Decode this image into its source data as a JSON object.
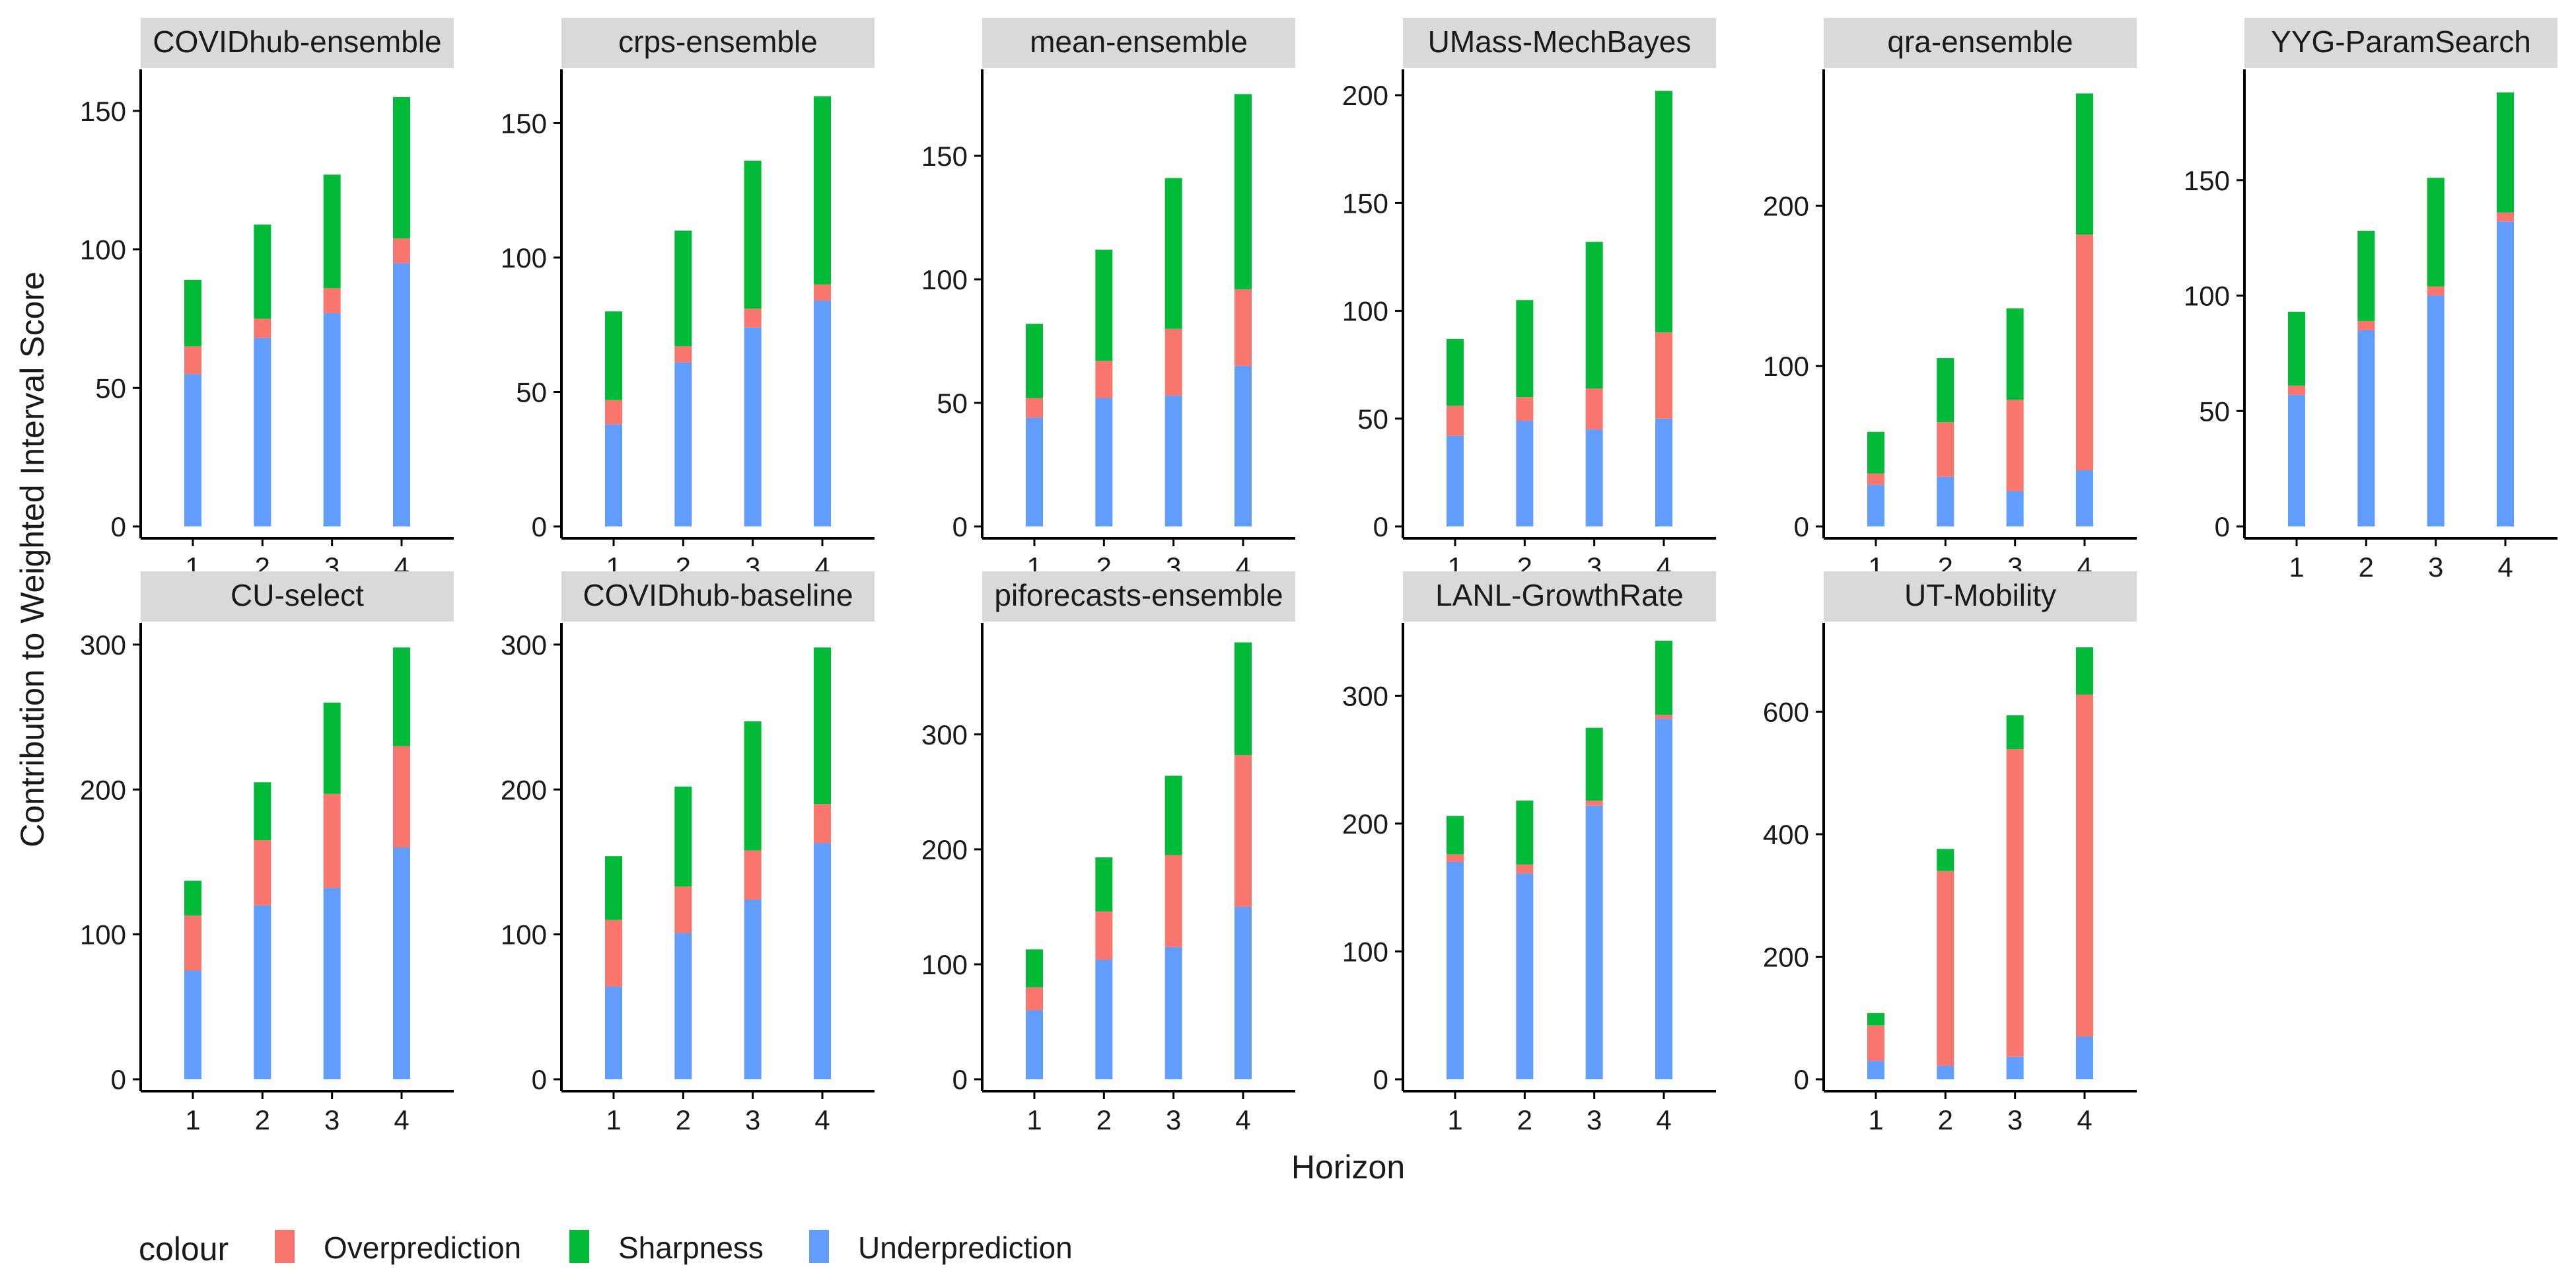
{
  "chart_data": {
    "type": "bar",
    "stacked": true,
    "layout": "facet-grid",
    "xlabel": "Horizon",
    "ylabel": "Contribution to Weighted Interval Score",
    "legend": {
      "title": "colour",
      "position": "bottom-left",
      "entries": [
        {
          "name": "Overprediction",
          "color": "#F8766D"
        },
        {
          "name": "Sharpness",
          "color": "#00BA38"
        },
        {
          "name": "Underprediction",
          "color": "#619CFF"
        }
      ]
    },
    "categories": [
      "1",
      "2",
      "3",
      "4"
    ],
    "facets": [
      {
        "title": "COVIDhub-ensemble",
        "ylim": [
          0,
          165
        ],
        "yticks": [
          "0",
          "50",
          "100",
          "150"
        ],
        "series": [
          {
            "name": "Underprediction",
            "values": [
              55,
              68,
              77,
              95
            ]
          },
          {
            "name": "Overprediction",
            "values": [
              10,
              7,
              9,
              9
            ]
          },
          {
            "name": "Sharpness",
            "values": [
              24,
              34,
              41,
              51
            ]
          }
        ]
      },
      {
        "title": "crps-ensemble",
        "ylim": [
          0,
          170
        ],
        "yticks": [
          "0",
          "50",
          "100",
          "150"
        ],
        "series": [
          {
            "name": "Underprediction",
            "values": [
              38,
              61,
              74,
              84
            ]
          },
          {
            "name": "Overprediction",
            "values": [
              9,
              6,
              7,
              6
            ]
          },
          {
            "name": "Sharpness",
            "values": [
              33,
              43,
              55,
              70
            ]
          }
        ]
      },
      {
        "title": "mean-ensemble",
        "ylim": [
          0,
          185
        ],
        "yticks": [
          "0",
          "50",
          "100",
          "150"
        ],
        "series": [
          {
            "name": "Underprediction",
            "values": [
              44,
              52,
              53,
              65
            ]
          },
          {
            "name": "Overprediction",
            "values": [
              8,
              15,
              27,
              31
            ]
          },
          {
            "name": "Sharpness",
            "values": [
              30,
              45,
              61,
              79
            ]
          }
        ]
      },
      {
        "title": "UMass-MechBayes",
        "ylim": [
          0,
          212
        ],
        "yticks": [
          "0",
          "50",
          "100",
          "150",
          "200"
        ],
        "series": [
          {
            "name": "Underprediction",
            "values": [
              42,
              49,
              45,
              50
            ]
          },
          {
            "name": "Overprediction",
            "values": [
              14,
              11,
              19,
              40
            ]
          },
          {
            "name": "Sharpness",
            "values": [
              31,
              45,
              68,
              112
            ]
          }
        ]
      },
      {
        "title": "qra-ensemble",
        "ylim": [
          0,
          285
        ],
        "yticks": [
          "0",
          "100",
          "200"
        ],
        "series": [
          {
            "name": "Underprediction",
            "values": [
              26,
              31,
              22,
              35
            ]
          },
          {
            "name": "Overprediction",
            "values": [
              7,
              34,
              57,
              147
            ]
          },
          {
            "name": "Sharpness",
            "values": [
              26,
              40,
              57,
              88
            ]
          }
        ]
      },
      {
        "title": "YYG-ParamSearch",
        "ylim": [
          0,
          198
        ],
        "yticks": [
          "0",
          "50",
          "100",
          "150"
        ],
        "series": [
          {
            "name": "Underprediction",
            "values": [
              57,
              85,
              100,
              132
            ]
          },
          {
            "name": "Overprediction",
            "values": [
              4,
              4,
              4,
              4
            ]
          },
          {
            "name": "Sharpness",
            "values": [
              32,
              39,
              47,
              52
            ]
          }
        ]
      },
      {
        "title": "CU-select",
        "ylim": [
          0,
          315
        ],
        "yticks": [
          "0",
          "100",
          "200",
          "300"
        ],
        "series": [
          {
            "name": "Underprediction",
            "values": [
              75,
              120,
              132,
              160
            ]
          },
          {
            "name": "Overprediction",
            "values": [
              38,
              45,
              65,
              70
            ]
          },
          {
            "name": "Sharpness",
            "values": [
              24,
              40,
              63,
              68
            ]
          }
        ]
      },
      {
        "title": "COVIDhub-baseline",
        "ylim": [
          0,
          315
        ],
        "yticks": [
          "0",
          "100",
          "200",
          "300"
        ],
        "series": [
          {
            "name": "Underprediction",
            "values": [
              64,
              101,
              124,
              163
            ]
          },
          {
            "name": "Overprediction",
            "values": [
              46,
              32,
              34,
              27
            ]
          },
          {
            "name": "Sharpness",
            "values": [
              44,
              69,
              89,
              108
            ]
          }
        ]
      },
      {
        "title": "piforecasts-ensemble",
        "ylim": [
          0,
          397
        ],
        "yticks": [
          "0",
          "100",
          "200",
          "300"
        ],
        "series": [
          {
            "name": "Underprediction",
            "values": [
              60,
              104,
              115,
              150
            ]
          },
          {
            "name": "Overprediction",
            "values": [
              20,
              42,
              80,
              132
            ]
          },
          {
            "name": "Sharpness",
            "values": [
              33,
              47,
              69,
              98
            ]
          }
        ]
      },
      {
        "title": "LANL-GrowthRate",
        "ylim": [
          0,
          357
        ],
        "yticks": [
          "0",
          "100",
          "200",
          "300"
        ],
        "series": [
          {
            "name": "Underprediction",
            "values": [
              170,
              161,
              214,
              282
            ]
          },
          {
            "name": "Overprediction",
            "values": [
              6,
              7,
              4,
              3
            ]
          },
          {
            "name": "Sharpness",
            "values": [
              30,
              50,
              57,
              58
            ]
          }
        ]
      },
      {
        "title": "UT-Mobility",
        "ylim": [
          0,
          745
        ],
        "yticks": [
          "0",
          "200",
          "400",
          "600"
        ],
        "series": [
          {
            "name": "Underprediction",
            "values": [
              30,
              22,
              37,
              70
            ]
          },
          {
            "name": "Overprediction",
            "values": [
              58,
              318,
              502,
              558
            ]
          },
          {
            "name": "Sharpness",
            "values": [
              20,
              36,
              55,
              77
            ]
          }
        ]
      }
    ]
  }
}
